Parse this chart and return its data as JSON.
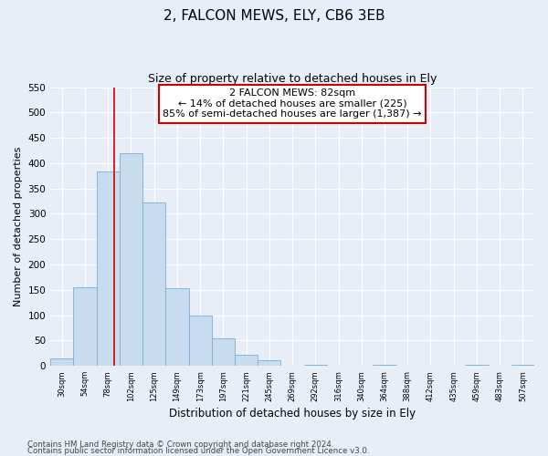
{
  "title": "2, FALCON MEWS, ELY, CB6 3EB",
  "subtitle": "Size of property relative to detached houses in Ely",
  "xlabel": "Distribution of detached houses by size in Ely",
  "ylabel": "Number of detached properties",
  "bar_values": [
    15,
    155,
    383,
    420,
    323,
    153,
    100,
    55,
    22,
    12,
    0,
    3,
    0,
    0,
    2,
    0,
    0,
    0,
    2,
    0,
    2
  ],
  "bar_labels": [
    "30sqm",
    "54sqm",
    "78sqm",
    "102sqm",
    "125sqm",
    "149sqm",
    "173sqm",
    "197sqm",
    "221sqm",
    "245sqm",
    "269sqm",
    "292sqm",
    "316sqm",
    "340sqm",
    "364sqm",
    "388sqm",
    "412sqm",
    "435sqm",
    "459sqm",
    "483sqm",
    "507sqm"
  ],
  "bar_color": "#c8dcf0",
  "bar_edge_color": "#7aadd4",
  "vline_x_index": 2.75,
  "vline_color": "#cc0000",
  "annotation_text": "2 FALCON MEWS: 82sqm\n← 14% of detached houses are smaller (225)\n85% of semi-detached houses are larger (1,387) →",
  "annotation_box_facecolor": "#ffffff",
  "annotation_box_edgecolor": "#cc0000",
  "ylim": [
    0,
    550
  ],
  "yticks": [
    0,
    50,
    100,
    150,
    200,
    250,
    300,
    350,
    400,
    450,
    500,
    550
  ],
  "footnote1": "Contains HM Land Registry data © Crown copyright and database right 2024.",
  "footnote2": "Contains public sector information licensed under the Open Government Licence v3.0.",
  "bg_color": "#e8eef8",
  "plot_bg_color": "#e8eef8",
  "grid_color": "#ffffff"
}
